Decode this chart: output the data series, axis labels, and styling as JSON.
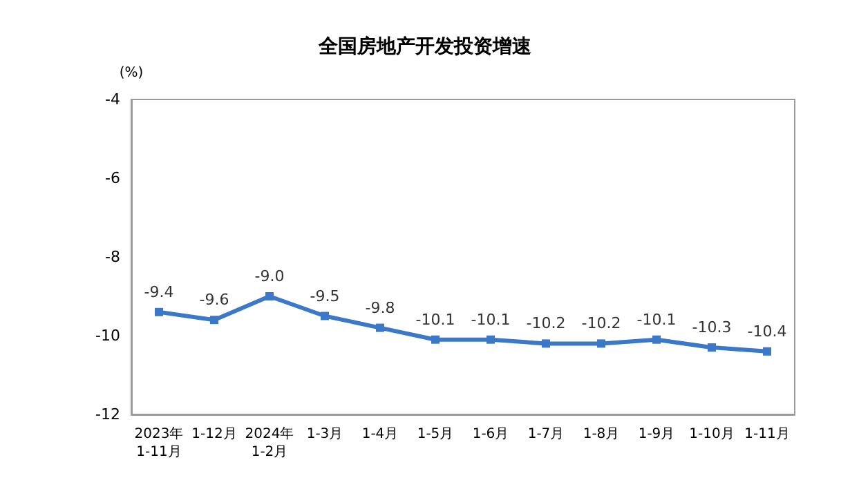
{
  "chart_data": {
    "type": "line",
    "title": "全国房地产开发投资增速",
    "ylabel": "(%)",
    "categories": [
      "2023年\n1-11月",
      "1-12月",
      "2024年\n1-2月",
      "1-3月",
      "1-4月",
      "1-5月",
      "1-6月",
      "1-7月",
      "1-8月",
      "1-9月",
      "1-10月",
      "1-11月"
    ],
    "series": [
      {
        "color": "#3b78c8",
        "values": [
          -9.4,
          -9.6,
          -9.0,
          -9.5,
          -9.8,
          -10.1,
          -10.1,
          -10.2,
          -10.2,
          -10.1,
          -10.3,
          -10.4
        ],
        "value_labels": [
          "-9.4",
          "-9.6",
          "-9.0",
          "-9.5",
          "-9.8",
          "-10.1",
          "-10.1",
          "-10.2",
          "-10.2",
          "-10.1",
          "-10.3",
          "-10.4"
        ]
      }
    ],
    "ylim": [
      -12,
      -4
    ],
    "yticks": [
      -12,
      -10,
      -8,
      -6,
      -4
    ],
    "grid": false,
    "marker": "square",
    "line_style": "solid"
  }
}
